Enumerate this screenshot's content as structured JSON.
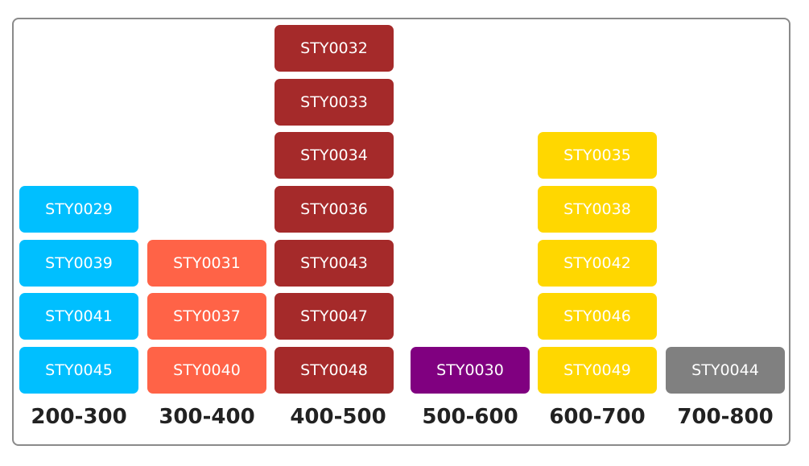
{
  "chart_data": {
    "type": "table",
    "title": "",
    "categories": [
      "200-300",
      "300-400",
      "400-500",
      "500-600",
      "600-700",
      "700-800"
    ],
    "series": [
      {
        "name": "200-300",
        "color": "#00BFFF",
        "items": [
          "STY0045",
          "STY0041",
          "STY0039",
          "STY0029"
        ]
      },
      {
        "name": "300-400",
        "color": "#FF6347",
        "items": [
          "STY0040",
          "STY0037",
          "STY0031"
        ]
      },
      {
        "name": "400-500",
        "color": "#A52A2A",
        "items": [
          "STY0048",
          "STY0047",
          "STY0043",
          "STY0036",
          "STY0034",
          "STY0033",
          "STY0032"
        ]
      },
      {
        "name": "500-600",
        "color": "#800080",
        "items": [
          "STY0030"
        ]
      },
      {
        "name": "600-700",
        "color": "#FFD700",
        "items": [
          "STY0049",
          "STY0046",
          "STY0042",
          "STY0038",
          "STY0035"
        ]
      },
      {
        "name": "700-800",
        "color": "#808080",
        "items": [
          "STY0044"
        ]
      }
    ]
  }
}
